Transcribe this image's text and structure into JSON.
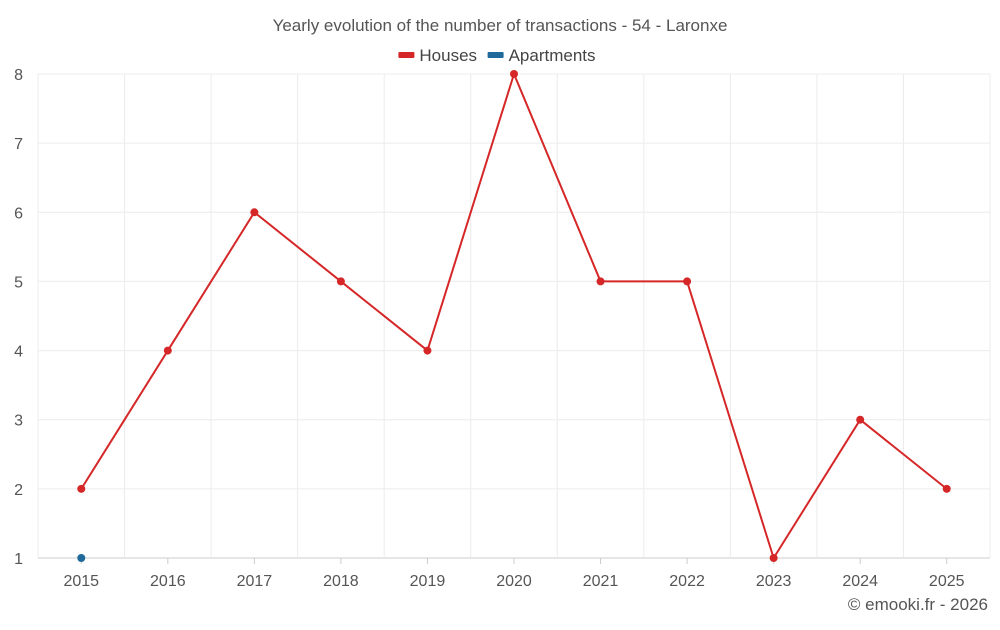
{
  "chart_data": {
    "type": "line",
    "title": "Yearly evolution of the number of transactions - 54 - Laronxe",
    "categories": [
      "2015",
      "2016",
      "2017",
      "2018",
      "2019",
      "2020",
      "2021",
      "2022",
      "2023",
      "2024",
      "2025"
    ],
    "series": [
      {
        "name": "Houses",
        "color": "#d62728",
        "values": [
          2,
          4,
          6,
          5,
          4,
          8,
          5,
          5,
          1,
          3,
          2
        ]
      },
      {
        "name": "Apartments",
        "color": "#1f6a9a",
        "values": [
          1,
          null,
          null,
          null,
          null,
          null,
          null,
          null,
          null,
          null,
          null
        ]
      }
    ],
    "yticks": [
      1,
      2,
      3,
      4,
      5,
      6,
      7,
      8
    ],
    "ylim": [
      1,
      8
    ],
    "grid": true,
    "legend": "top-center",
    "xlabel": "",
    "ylabel": ""
  },
  "credit": "© emooki.fr - 2026"
}
